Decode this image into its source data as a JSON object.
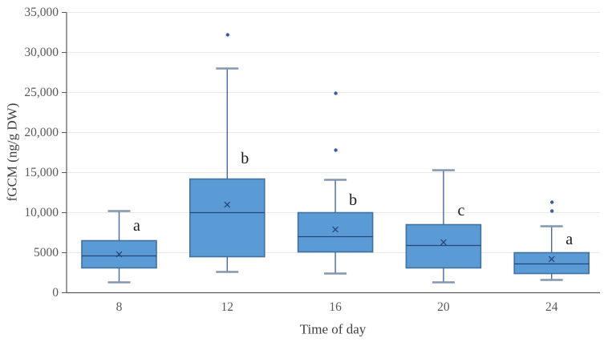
{
  "chart_data": {
    "type": "boxplot",
    "title": "",
    "xlabel": "Time of day",
    "ylabel": "fGCM (ng/g DW)",
    "categories": [
      "8",
      "12",
      "16",
      "20",
      "24"
    ],
    "y_axis": {
      "min": 0,
      "max": 35000,
      "step": 5000,
      "tick_labels": [
        "0",
        "5000",
        "10,000",
        "15,000",
        "20,000",
        "25,000",
        "30,000",
        "35,000"
      ]
    },
    "grid": true,
    "legend": false,
    "series": [
      {
        "category": "8",
        "whisker_low": 1300,
        "q1": 3100,
        "median": 4600,
        "mean": 4800,
        "q3": 6500,
        "whisker_high": 10200,
        "outliers": [],
        "sig_letter": "a",
        "sig_letter_y": 8350
      },
      {
        "category": "12",
        "whisker_low": 2600,
        "q1": 4500,
        "median": 10000,
        "mean": 11000,
        "q3": 14200,
        "whisker_high": 28000,
        "outliers": [
          32200
        ],
        "sig_letter": "b",
        "sig_letter_y": 16750
      },
      {
        "category": "16",
        "whisker_low": 2400,
        "q1": 5100,
        "median": 7000,
        "mean": 7900,
        "q3": 10000,
        "whisker_high": 14100,
        "outliers": [
          17800,
          24900
        ],
        "sig_letter": "b",
        "sig_letter_y": 11550
      },
      {
        "category": "20",
        "whisker_low": 1300,
        "q1": 3100,
        "median": 5900,
        "mean": 6300,
        "q3": 8500,
        "whisker_high": 15300,
        "outliers": [],
        "sig_letter": "c",
        "sig_letter_y": 10250
      },
      {
        "category": "24",
        "whisker_low": 1600,
        "q1": 2400,
        "median": 3600,
        "mean": 4200,
        "q3": 5000,
        "whisker_high": 8300,
        "outliers": [
          10200,
          11300
        ],
        "sig_letter": "a",
        "sig_letter_y": 6650
      }
    ],
    "colors": {
      "box_fill": "#5B9BD5",
      "box_border": "#41719C",
      "median_line": "#264478",
      "mean_marker": "#264478",
      "whisker_line": "#46689B",
      "cap_line": "#8496B0",
      "outlier": "#3A5E9C",
      "gridline": "#E9E9E9",
      "axis_line": "#595959",
      "tick_label": "#595959",
      "axis_title": "#3F3F3F",
      "letter": "#1A1A1A"
    }
  }
}
